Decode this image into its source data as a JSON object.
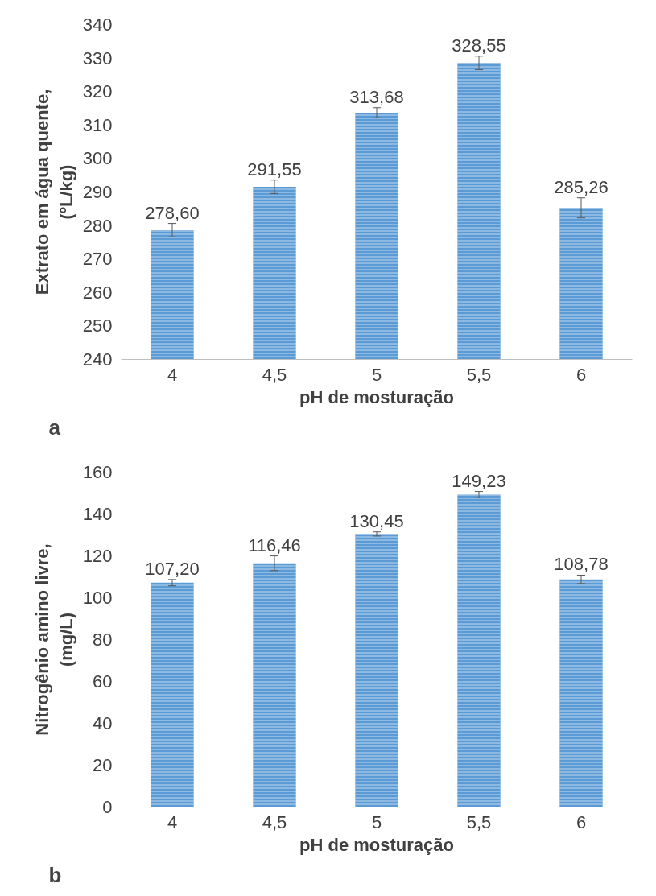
{
  "chart_data": [
    {
      "type": "bar",
      "xlabel": "pH de mosturação",
      "ylabel": "Extrato em água quente,\n(ºL/kg)",
      "categories": [
        "4",
        "4,5",
        "5",
        "5,5",
        "6"
      ],
      "values": [
        278.6,
        291.55,
        313.68,
        328.55,
        285.26
      ],
      "errors": [
        2,
        2,
        1.5,
        2,
        3
      ],
      "value_labels": [
        "278,60",
        "291,55",
        "313,68",
        "328,55",
        "285,26"
      ],
      "color": "#5b9bd5",
      "ylim": [
        240,
        340
      ],
      "yticks": [
        240,
        250,
        260,
        270,
        280,
        290,
        300,
        310,
        320,
        330,
        340
      ],
      "grid": false,
      "annotations": [
        "a"
      ]
    },
    {
      "type": "bar",
      "xlabel": "pH de mosturação",
      "ylabel": "Nitrogênio amino livre,\n(mg/L)",
      "categories": [
        "4",
        "4,5",
        "5",
        "5,5",
        "6"
      ],
      "values": [
        107.2,
        116.46,
        130.45,
        149.23,
        108.78
      ],
      "errors": [
        1.5,
        3.5,
        1,
        1.5,
        2
      ],
      "value_labels": [
        "107,20",
        "116,46",
        "130,45",
        "149,23",
        "108,78"
      ],
      "color": "#5b9bd5",
      "ylim": [
        0,
        160
      ],
      "yticks": [
        0,
        20,
        40,
        60,
        80,
        100,
        120,
        140,
        160
      ],
      "grid": false,
      "annotations": [
        "b"
      ]
    }
  ]
}
